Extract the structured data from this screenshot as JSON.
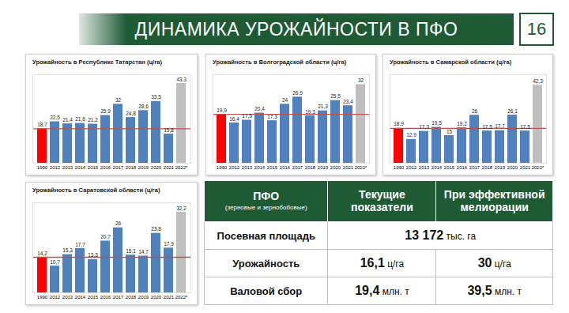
{
  "header": {
    "title": "ДИНАМИКА УРОЖАЙНОСТИ В ПФО",
    "page": "16"
  },
  "chart_data": [
    {
      "type": "bar",
      "title": "Урожайность в Республике Татарстан (ц/га)",
      "categories": [
        "1990",
        "2012",
        "2013",
        "2014",
        "2015",
        "2016",
        "2017",
        "2018",
        "2019",
        "2020",
        "2021",
        "2022*"
      ],
      "values": [
        18.7,
        22.5,
        21.4,
        21.6,
        21.2,
        25.9,
        32,
        24.8,
        28.6,
        33.5,
        15.8,
        43.3
      ],
      "value_labels": [
        "18,7",
        "22,5",
        "21,4",
        "21,6",
        "21,2",
        "25,9",
        "32",
        "24,8",
        "28,6",
        "33,5",
        "15,8",
        "43,3"
      ],
      "colors": [
        "#ff0000",
        "#4f81bd",
        "#4f81bd",
        "#4f81bd",
        "#4f81bd",
        "#4f81bd",
        "#4f81bd",
        "#4f81bd",
        "#4f81bd",
        "#4f81bd",
        "#4f81bd",
        "#bfbfbf"
      ],
      "reference_line": {
        "value": 18.7,
        "color": "#c0504d"
      },
      "ylim": [
        0,
        48
      ],
      "data_labels": true,
      "tick_labels": "x",
      "grid": false
    },
    {
      "type": "bar",
      "title": "Урожайность в Волгоградской области (ц/га)",
      "categories": [
        "1990",
        "2012",
        "2013",
        "2014",
        "2015",
        "2016",
        "2017",
        "2018",
        "2019",
        "2020",
        "2021",
        "2022*"
      ],
      "values": [
        19.9,
        16.4,
        17.5,
        20.4,
        17.3,
        24,
        26.9,
        19.3,
        21.3,
        25.5,
        23.4,
        32
      ],
      "value_labels": [
        "19,9",
        "16,4",
        "17,5",
        "20,4",
        "17,3",
        "24",
        "26,9",
        "19,3",
        "21,3",
        "25,5",
        "23,4",
        "32"
      ],
      "colors": [
        "#ff0000",
        "#4f81bd",
        "#4f81bd",
        "#4f81bd",
        "#4f81bd",
        "#4f81bd",
        "#4f81bd",
        "#4f81bd",
        "#4f81bd",
        "#4f81bd",
        "#4f81bd",
        "#bfbfbf"
      ],
      "reference_line": {
        "value": 19.9,
        "color": "#c0504d"
      },
      "ylim": [
        0,
        36
      ],
      "data_labels": true,
      "tick_labels": "x",
      "grid": false
    },
    {
      "type": "bar",
      "title": "Урожайность в Самарской области (ц/га)",
      "categories": [
        "1990",
        "2012",
        "2013",
        "2014",
        "2015",
        "2016",
        "2017",
        "2018",
        "2019",
        "2020",
        "2021",
        "2022*"
      ],
      "values": [
        18.9,
        12.9,
        17.3,
        19.5,
        15,
        19.2,
        26,
        17.5,
        17.7,
        26.1,
        17.5,
        42.3
      ],
      "value_labels": [
        "18,9",
        "12,9",
        "17,3",
        "19,5",
        "15",
        "19,2",
        "26",
        "17,5",
        "17,7",
        "26,1",
        "17,5",
        "42,3"
      ],
      "colors": [
        "#ff0000",
        "#4f81bd",
        "#4f81bd",
        "#4f81bd",
        "#4f81bd",
        "#4f81bd",
        "#4f81bd",
        "#4f81bd",
        "#4f81bd",
        "#4f81bd",
        "#4f81bd",
        "#bfbfbf"
      ],
      "reference_line": {
        "value": 18.9,
        "color": "#c0504d"
      },
      "ylim": [
        0,
        48
      ],
      "data_labels": true,
      "tick_labels": "x",
      "grid": false
    },
    {
      "type": "bar",
      "title": "Урожайность в Саратовской области (ц/га)",
      "categories": [
        "1990",
        "2012",
        "2013",
        "2014",
        "2015",
        "2016",
        "2017",
        "2018",
        "2019",
        "2020",
        "2021",
        "2022*"
      ],
      "values": [
        14.2,
        10.7,
        15.3,
        17.7,
        13.3,
        20.7,
        26,
        15.1,
        14.7,
        23.8,
        17.9,
        32.2
      ],
      "value_labels": [
        "14,2",
        "10,7",
        "15,3",
        "17,7",
        "13,3",
        "20,7",
        "26",
        "15,1",
        "14,7",
        "23,8",
        "17,9",
        "32,2"
      ],
      "colors": [
        "#ff0000",
        "#4f81bd",
        "#4f81bd",
        "#4f81bd",
        "#4f81bd",
        "#4f81bd",
        "#4f81bd",
        "#4f81bd",
        "#4f81bd",
        "#4f81bd",
        "#4f81bd",
        "#bfbfbf"
      ],
      "reference_line": {
        "value": 14.2,
        "color": "#c0504d"
      },
      "ylim": [
        0,
        36
      ],
      "data_labels": true,
      "tick_labels": "x",
      "grid": false
    }
  ],
  "table": {
    "header": [
      {
        "text": "ПФО",
        "note": "(зерновые и зернобобовые)"
      },
      {
        "text": "Текущие показатели"
      },
      {
        "text": "При эффективной мелиорации"
      }
    ],
    "rows": [
      {
        "label": "Посевная площадь",
        "cells": [
          {
            "value": "13 172",
            "unit": "тыс. га",
            "span": 2
          }
        ]
      },
      {
        "label": "Урожайность",
        "cells": [
          {
            "value": "16,1",
            "unit": "ц/га"
          },
          {
            "value": "30",
            "unit": "ц/га"
          }
        ]
      },
      {
        "label": "Валовой сбор",
        "cells": [
          {
            "value": "19,4",
            "unit": "млн. т"
          },
          {
            "value": "39,5",
            "unit": "млн. т"
          }
        ]
      }
    ]
  }
}
